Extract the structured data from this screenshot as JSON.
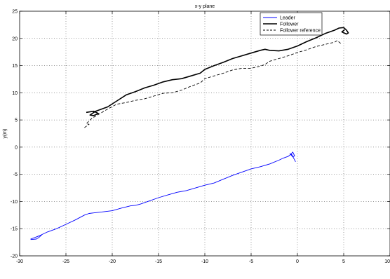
{
  "chart_data": {
    "type": "line",
    "title": "x-y plane",
    "xlabel": "",
    "ylabel": "y(m)",
    "xlim": [
      -30,
      10
    ],
    "ylim": [
      -20,
      25
    ],
    "xticks": [
      -30,
      -25,
      -20,
      -15,
      -10,
      -5,
      0,
      5,
      10
    ],
    "yticks": [
      -20,
      -15,
      -10,
      -5,
      0,
      5,
      10,
      15,
      20,
      25
    ],
    "grid": true,
    "legend_position": "top-right",
    "series": [
      {
        "name": "Leader",
        "color": "#0000ff",
        "style": "solid",
        "x": [
          -28.8,
          -28.2,
          -27.9,
          -27.6,
          -28.3,
          -28.8,
          -28.0,
          -27.0,
          -26.0,
          -25.0,
          -24.0,
          -23.0,
          -22.5,
          -22.0,
          -21.0,
          -20.0,
          -19.0,
          -18.0,
          -17.5,
          -17.0,
          -16.0,
          -15.0,
          -14.0,
          -13.0,
          -12.0,
          -11.0,
          -10.0,
          -9.0,
          -8.0,
          -7.0,
          -6.0,
          -5.0,
          -4.0,
          -3.0,
          -2.0,
          -1.5,
          -1.0,
          -0.7,
          -0.5,
          -0.3,
          -0.5,
          -0.8,
          -0.6,
          -0.2
        ],
        "y": [
          -17.0,
          -16.9,
          -16.6,
          -16.1,
          -16.6,
          -16.9,
          -16.4,
          -15.6,
          -15.0,
          -14.2,
          -13.4,
          -12.5,
          -12.2,
          -12.1,
          -11.9,
          -11.7,
          -11.2,
          -10.8,
          -10.7,
          -10.5,
          -9.9,
          -9.3,
          -8.8,
          -8.3,
          -8.0,
          -7.5,
          -7.0,
          -6.6,
          -5.9,
          -5.2,
          -4.6,
          -4.0,
          -3.6,
          -3.1,
          -2.4,
          -2.0,
          -1.7,
          -1.3,
          -0.9,
          -1.6,
          -1.8,
          -1.2,
          -1.4,
          -2.7
        ]
      },
      {
        "name": "Follower",
        "color": "#000000",
        "style": "solid",
        "x": [
          -22.8,
          -22.0,
          -21.5,
          -22.0,
          -22.4,
          -21.8,
          -20.5,
          -19.5,
          -18.5,
          -17.5,
          -16.5,
          -15.5,
          -14.5,
          -13.5,
          -12.5,
          -11.5,
          -10.5,
          -10.0,
          -9.0,
          -8.0,
          -7.0,
          -6.0,
          -5.0,
          -4.0,
          -3.5,
          -3.0,
          -2.0,
          -1.0,
          0.0,
          1.0,
          2.0,
          3.0,
          4.0,
          4.5,
          5.0,
          5.3,
          5.5,
          5.3,
          4.8,
          5.1
        ],
        "y": [
          6.4,
          6.6,
          6.2,
          5.8,
          5.9,
          6.6,
          7.4,
          8.5,
          9.6,
          10.2,
          10.9,
          11.4,
          12.0,
          12.4,
          12.6,
          13.1,
          13.6,
          14.3,
          15.0,
          15.6,
          16.3,
          16.8,
          17.3,
          17.8,
          18.0,
          17.8,
          17.7,
          18.0,
          18.6,
          19.4,
          20.1,
          20.9,
          21.5,
          21.9,
          22.0,
          21.5,
          21.0,
          20.8,
          21.2,
          21.6
        ]
      },
      {
        "name": "Follower reference",
        "color": "#000000",
        "style": "dashed",
        "x": [
          -23.0,
          -22.5,
          -22.8,
          -22.2,
          -21.5,
          -20.5,
          -19.5,
          -18.5,
          -17.5,
          -16.5,
          -15.5,
          -14.5,
          -13.5,
          -12.5,
          -11.5,
          -10.5,
          -10.0,
          -9.0,
          -8.0,
          -7.0,
          -6.0,
          -5.0,
          -4.0,
          -3.5,
          -3.0,
          -2.0,
          -1.0,
          0.0,
          1.0,
          2.0,
          3.0,
          4.0,
          4.3,
          4.8
        ],
        "y": [
          3.6,
          4.2,
          4.3,
          5.3,
          6.0,
          7.0,
          7.9,
          8.2,
          8.6,
          8.9,
          9.4,
          9.9,
          10.0,
          10.5,
          11.2,
          11.8,
          12.6,
          13.1,
          13.6,
          14.2,
          14.5,
          14.5,
          14.9,
          15.2,
          15.8,
          16.3,
          16.8,
          17.4,
          17.9,
          18.5,
          18.9,
          19.3,
          19.6,
          18.9
        ]
      }
    ]
  }
}
